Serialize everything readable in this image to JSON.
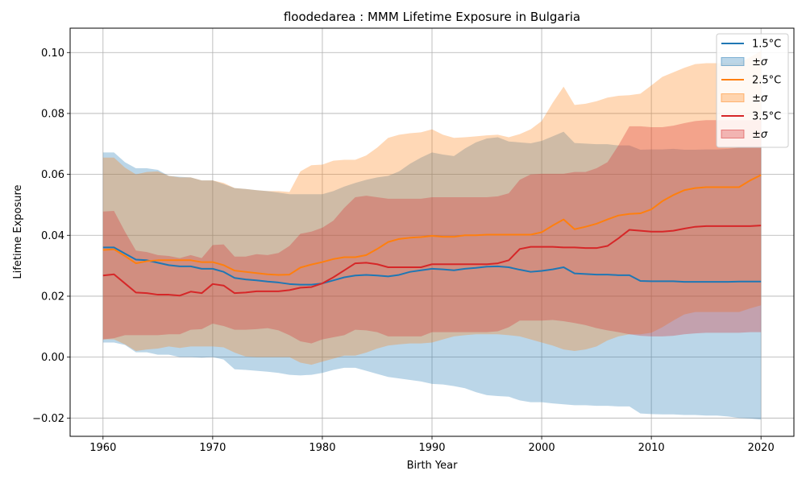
{
  "chart_data": {
    "type": "line",
    "title": "floodedarea : MMM Lifetime Exposure in Bulgaria",
    "xlabel": "Birth Year",
    "ylabel": "Lifetime Exposure",
    "xlim": [
      1957,
      2023
    ],
    "ylim": [
      -0.026,
      0.108
    ],
    "xticks": [
      1960,
      1970,
      1980,
      1990,
      2000,
      2010,
      2020
    ],
    "xtick_labels": [
      "1960",
      "1970",
      "1980",
      "1990",
      "2000",
      "2010",
      "2020"
    ],
    "yticks": [
      -0.02,
      0.0,
      0.02,
      0.04,
      0.06,
      0.08,
      0.1
    ],
    "ytick_labels": [
      "−0.02",
      "0.00",
      "0.02",
      "0.04",
      "0.06",
      "0.08",
      "0.10"
    ],
    "grid": true,
    "legend_position": "top-right",
    "x": [
      1960,
      1961,
      1962,
      1963,
      1964,
      1965,
      1966,
      1967,
      1968,
      1969,
      1970,
      1971,
      1972,
      1973,
      1974,
      1975,
      1976,
      1977,
      1978,
      1979,
      1980,
      1981,
      1982,
      1983,
      1984,
      1985,
      1986,
      1987,
      1988,
      1989,
      1990,
      1991,
      1992,
      1993,
      1994,
      1995,
      1996,
      1997,
      1998,
      1999,
      2000,
      2001,
      2002,
      2003,
      2004,
      2005,
      2006,
      2007,
      2008,
      2009,
      2010,
      2011,
      2012,
      2013,
      2014,
      2015,
      2016,
      2017,
      2018,
      2019,
      2020
    ],
    "series": [
      {
        "name": "1.5°C",
        "band_label": "±σ",
        "color": "#1f77b4",
        "band_color": "#1f77b4",
        "band_opacity": 0.3,
        "mean": [
          0.036,
          0.036,
          0.034,
          0.032,
          0.0318,
          0.031,
          0.0302,
          0.0298,
          0.0298,
          0.029,
          0.029,
          0.028,
          0.026,
          0.0255,
          0.0252,
          0.0248,
          0.0245,
          0.024,
          0.0238,
          0.0238,
          0.0242,
          0.0252,
          0.0262,
          0.0268,
          0.027,
          0.0268,
          0.0265,
          0.027,
          0.028,
          0.0285,
          0.029,
          0.0288,
          0.0285,
          0.029,
          0.0293,
          0.0297,
          0.0298,
          0.0295,
          0.0287,
          0.028,
          0.0283,
          0.0288,
          0.0295,
          0.0275,
          0.0273,
          0.0271,
          0.0271,
          0.0269,
          0.0269,
          0.025,
          0.0249,
          0.0249,
          0.0249,
          0.0247,
          0.0247,
          0.0247,
          0.0247,
          0.0247,
          0.0248,
          0.0248,
          0.0248
        ],
        "upper": [
          0.0672,
          0.0672,
          0.064,
          0.062,
          0.062,
          0.0615,
          0.0595,
          0.0592,
          0.059,
          0.058,
          0.058,
          0.0568,
          0.0555,
          0.0552,
          0.0548,
          0.0545,
          0.054,
          0.0535,
          0.0535,
          0.0535,
          0.0535,
          0.0545,
          0.056,
          0.0572,
          0.0582,
          0.059,
          0.0595,
          0.061,
          0.0635,
          0.0655,
          0.0672,
          0.0665,
          0.066,
          0.0685,
          0.0705,
          0.0718,
          0.0722,
          0.0708,
          0.0705,
          0.0702,
          0.071,
          0.0725,
          0.074,
          0.0703,
          0.0701,
          0.0699,
          0.0699,
          0.0695,
          0.0695,
          0.0681,
          0.0682,
          0.0682,
          0.0684,
          0.0681,
          0.0681,
          0.0682,
          0.0682,
          0.0684,
          0.0688,
          0.0689,
          0.069
        ],
        "lower": [
          0.0048,
          0.0048,
          0.004,
          0.0016,
          0.0016,
          0.0008,
          0.0008,
          0.0,
          0.0,
          -0.0002,
          0.0,
          -0.0008,
          -0.004,
          -0.0042,
          -0.0045,
          -0.0048,
          -0.0052,
          -0.0058,
          -0.006,
          -0.0058,
          -0.0052,
          -0.0042,
          -0.0035,
          -0.0035,
          -0.0045,
          -0.0055,
          -0.0065,
          -0.007,
          -0.0075,
          -0.008,
          -0.0088,
          -0.009,
          -0.0095,
          -0.0102,
          -0.0115,
          -0.0125,
          -0.0128,
          -0.013,
          -0.0142,
          -0.0148,
          -0.0148,
          -0.0152,
          -0.0155,
          -0.0158,
          -0.0158,
          -0.016,
          -0.016,
          -0.0162,
          -0.0162,
          -0.0185,
          -0.0187,
          -0.0188,
          -0.0188,
          -0.019,
          -0.019,
          -0.0192,
          -0.0192,
          -0.0195,
          -0.02,
          -0.0202,
          -0.0205
        ]
      },
      {
        "name": "2.5°C",
        "band_label": "±σ",
        "color": "#ff7f0e",
        "band_color": "#ff7f0e",
        "band_opacity": 0.3,
        "mean": [
          0.0352,
          0.0354,
          0.0332,
          0.0308,
          0.0315,
          0.0318,
          0.0318,
          0.0318,
          0.0318,
          0.0312,
          0.0312,
          0.0302,
          0.0284,
          0.028,
          0.0276,
          0.0272,
          0.027,
          0.0271,
          0.0294,
          0.0304,
          0.0312,
          0.0322,
          0.0328,
          0.0328,
          0.0335,
          0.0355,
          0.0378,
          0.0388,
          0.0392,
          0.0394,
          0.0398,
          0.0395,
          0.0395,
          0.04,
          0.04,
          0.0402,
          0.0402,
          0.0402,
          0.0402,
          0.0402,
          0.041,
          0.0432,
          0.0452,
          0.042,
          0.0428,
          0.0438,
          0.0452,
          0.0465,
          0.047,
          0.0472,
          0.0485,
          0.0512,
          0.0532,
          0.0548,
          0.0555,
          0.0558,
          0.0558,
          0.0558,
          0.0558,
          0.058,
          0.0598
        ],
        "upper": [
          0.0655,
          0.0655,
          0.0622,
          0.06,
          0.0608,
          0.061,
          0.0595,
          0.059,
          0.059,
          0.058,
          0.058,
          0.0572,
          0.0555,
          0.0552,
          0.0548,
          0.0545,
          0.0545,
          0.0542,
          0.061,
          0.063,
          0.0632,
          0.0645,
          0.0648,
          0.0648,
          0.0662,
          0.0688,
          0.072,
          0.073,
          0.0735,
          0.0738,
          0.0748,
          0.073,
          0.072,
          0.0722,
          0.0725,
          0.0728,
          0.073,
          0.0722,
          0.0732,
          0.0748,
          0.0775,
          0.0835,
          0.0888,
          0.0828,
          0.0832,
          0.084,
          0.0852,
          0.0858,
          0.086,
          0.0865,
          0.0892,
          0.092,
          0.0935,
          0.095,
          0.0962,
          0.0965,
          0.0965,
          0.0965,
          0.0965,
          0.0985,
          0.1005
        ],
        "lower": [
          0.0058,
          0.0058,
          0.0042,
          0.002,
          0.0025,
          0.0028,
          0.0035,
          0.003,
          0.0035,
          0.0035,
          0.0035,
          0.0032,
          0.0015,
          0.0002,
          0.0,
          0.0,
          0.0,
          0.0,
          -0.0018,
          -0.0025,
          -0.0015,
          -0.0005,
          0.0005,
          0.0005,
          0.0015,
          0.0028,
          0.0038,
          0.0042,
          0.0045,
          0.0045,
          0.0048,
          0.0058,
          0.0068,
          0.0072,
          0.0075,
          0.0075,
          0.0075,
          0.0072,
          0.0068,
          0.0058,
          0.0048,
          0.0038,
          0.0025,
          0.002,
          0.0025,
          0.0035,
          0.0055,
          0.0068,
          0.0075,
          0.0075,
          0.008,
          0.0098,
          0.012,
          0.014,
          0.0148,
          0.0148,
          0.0148,
          0.0148,
          0.0148,
          0.016,
          0.017
        ]
      },
      {
        "name": "3.5°C",
        "band_label": "±σ",
        "color": "#d62728",
        "band_color": "#d62728",
        "band_opacity": 0.3,
        "mean": [
          0.0268,
          0.0272,
          0.0242,
          0.0212,
          0.021,
          0.0205,
          0.0205,
          0.0202,
          0.0215,
          0.021,
          0.024,
          0.0235,
          0.021,
          0.0212,
          0.0216,
          0.0216,
          0.0216,
          0.022,
          0.0228,
          0.023,
          0.0242,
          0.0262,
          0.0285,
          0.0308,
          0.031,
          0.0305,
          0.0295,
          0.0295,
          0.0295,
          0.0295,
          0.0305,
          0.0305,
          0.0305,
          0.0305,
          0.0305,
          0.0305,
          0.0308,
          0.0318,
          0.0355,
          0.0362,
          0.0362,
          0.0362,
          0.036,
          0.036,
          0.0358,
          0.0358,
          0.0365,
          0.039,
          0.0418,
          0.0415,
          0.0412,
          0.0412,
          0.0415,
          0.0422,
          0.0428,
          0.043,
          0.043,
          0.043,
          0.043,
          0.043,
          0.0432
        ],
        "upper": [
          0.0478,
          0.048,
          0.0412,
          0.035,
          0.0345,
          0.0335,
          0.0332,
          0.0325,
          0.0335,
          0.0325,
          0.0368,
          0.037,
          0.033,
          0.033,
          0.0338,
          0.0335,
          0.0342,
          0.0365,
          0.0405,
          0.0412,
          0.0425,
          0.0448,
          0.049,
          0.0525,
          0.053,
          0.0525,
          0.052,
          0.052,
          0.052,
          0.052,
          0.0525,
          0.0525,
          0.0525,
          0.0525,
          0.0525,
          0.0525,
          0.0528,
          0.0538,
          0.0582,
          0.06,
          0.0602,
          0.0602,
          0.0602,
          0.0608,
          0.0608,
          0.062,
          0.064,
          0.0695,
          0.0758,
          0.0758,
          0.0755,
          0.0755,
          0.076,
          0.0768,
          0.0775,
          0.0778,
          0.0778,
          0.0778,
          0.0778,
          0.0778,
          0.0778
        ],
        "lower": [
          0.0058,
          0.0062,
          0.0072,
          0.0072,
          0.0072,
          0.0072,
          0.0075,
          0.0075,
          0.009,
          0.0092,
          0.011,
          0.0102,
          0.009,
          0.009,
          0.0092,
          0.0095,
          0.0088,
          0.0072,
          0.0052,
          0.0045,
          0.0058,
          0.0065,
          0.0072,
          0.009,
          0.0088,
          0.0082,
          0.0068,
          0.0068,
          0.0068,
          0.0068,
          0.0082,
          0.0082,
          0.0082,
          0.0082,
          0.0082,
          0.0082,
          0.0085,
          0.0098,
          0.012,
          0.012,
          0.012,
          0.0122,
          0.0118,
          0.0112,
          0.0105,
          0.0095,
          0.0088,
          0.0082,
          0.0075,
          0.007,
          0.0068,
          0.0068,
          0.007,
          0.0075,
          0.0078,
          0.008,
          0.008,
          0.008,
          0.008,
          0.0082,
          0.0082
        ]
      }
    ]
  }
}
